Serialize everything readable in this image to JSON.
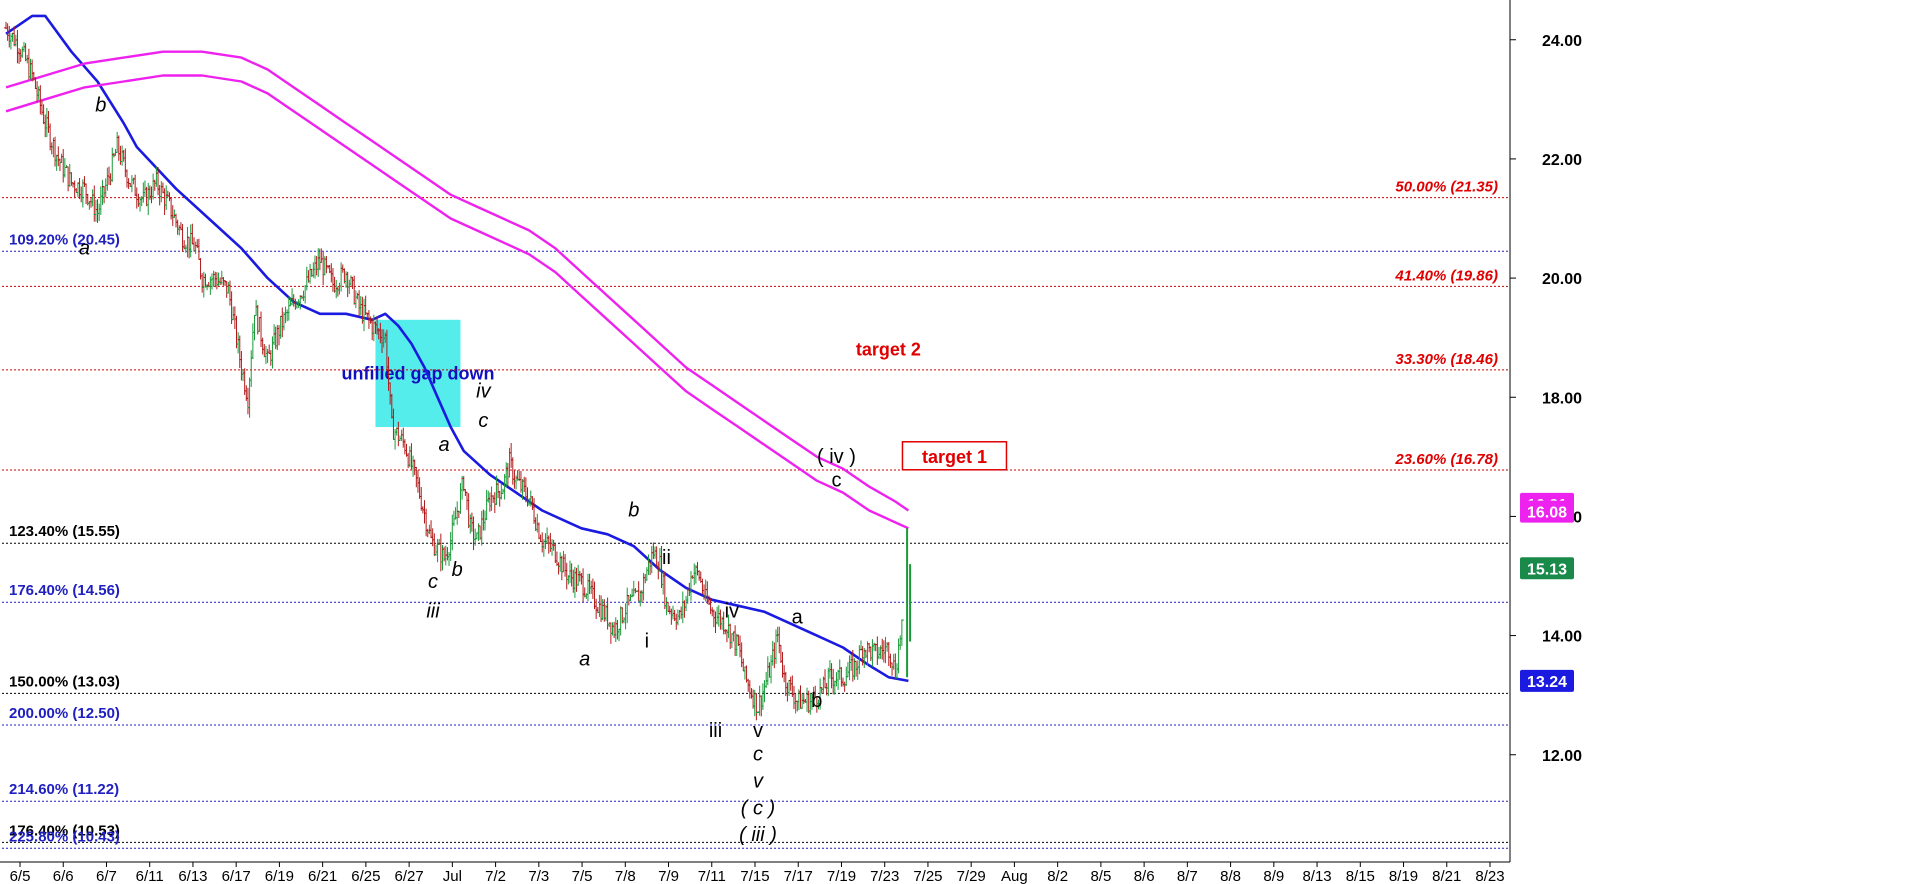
{
  "chart_data": {
    "type": "candlestick",
    "y_axis": {
      "range": [
        10.2,
        24.6
      ],
      "ticks": [
        12,
        14,
        16,
        18,
        20,
        22,
        24
      ],
      "tick_labels": [
        "12.00",
        "14.00",
        "16.00",
        "18.00",
        "20.00",
        "22.00",
        "24.00"
      ]
    },
    "x_axis": {
      "tick_labels": [
        "6/5",
        "6/6",
        "6/7",
        "6/11",
        "6/13",
        "6/17",
        "6/19",
        "6/21",
        "6/25",
        "6/27",
        "Jul",
        "7/2",
        "7/3",
        "7/5",
        "7/8",
        "7/9",
        "7/11",
        "7/15",
        "7/17",
        "7/19",
        "7/23",
        "7/25",
        "7/29",
        "Aug",
        "8/2",
        "8/5",
        "8/6",
        "8/7",
        "8/8",
        "8/9",
        "8/13",
        "8/15",
        "8/19",
        "8/21",
        "8/23"
      ]
    },
    "price_path": [
      [
        0,
        24.2
      ],
      [
        2,
        23.9
      ],
      [
        4,
        23.4
      ],
      [
        6,
        22.6
      ],
      [
        8,
        22.0
      ],
      [
        10,
        21.6
      ],
      [
        12,
        21.5
      ],
      [
        14,
        21.1
      ],
      [
        16,
        21.8
      ],
      [
        17,
        22.2
      ],
      [
        19,
        21.6
      ],
      [
        21,
        21.3
      ],
      [
        23,
        21.6
      ],
      [
        25,
        21.2
      ],
      [
        27,
        20.7
      ],
      [
        29,
        20.5
      ],
      [
        30,
        20.0
      ],
      [
        32,
        20.0
      ],
      [
        34,
        19.8
      ],
      [
        36,
        18.5
      ],
      [
        37,
        18.0
      ],
      [
        38,
        19.5
      ],
      [
        40,
        18.6
      ],
      [
        42,
        19.2
      ],
      [
        44,
        19.6
      ],
      [
        46,
        19.9
      ],
      [
        48,
        20.3
      ],
      [
        50,
        19.9
      ],
      [
        52,
        20.1
      ],
      [
        54,
        19.5
      ],
      [
        56,
        19.2
      ],
      [
        58,
        19.0
      ],
      [
        59,
        17.5
      ],
      [
        61,
        17.2
      ],
      [
        63,
        16.5
      ],
      [
        65,
        15.6
      ],
      [
        67,
        15.3
      ],
      [
        68,
        15.6
      ],
      [
        70,
        16.6
      ],
      [
        71,
        15.8
      ],
      [
        72,
        15.6
      ],
      [
        74,
        16.3
      ],
      [
        76,
        16.5
      ],
      [
        77,
        16.9
      ],
      [
        78,
        16.6
      ],
      [
        80,
        16.3
      ],
      [
        82,
        15.6
      ],
      [
        84,
        15.4
      ],
      [
        86,
        15.0
      ],
      [
        88,
        14.9
      ],
      [
        90,
        14.6
      ],
      [
        92,
        14.3
      ],
      [
        93,
        14.1
      ],
      [
        95,
        14.5
      ],
      [
        97,
        14.7
      ],
      [
        98,
        15.1
      ],
      [
        99,
        15.4
      ],
      [
        100,
        15.2
      ],
      [
        101,
        14.5
      ],
      [
        103,
        14.3
      ],
      [
        104,
        14.6
      ],
      [
        105,
        15.1
      ],
      [
        106,
        15.0
      ],
      [
        107,
        14.6
      ],
      [
        108,
        14.4
      ],
      [
        110,
        14.2
      ],
      [
        112,
        13.8
      ],
      [
        113,
        13.3
      ],
      [
        115,
        12.8
      ],
      [
        117,
        13.5
      ],
      [
        118,
        14.0
      ],
      [
        119,
        13.3
      ],
      [
        121,
        12.9
      ],
      [
        123,
        12.9
      ],
      [
        125,
        13.1
      ],
      [
        126,
        13.3
      ],
      [
        128,
        13.3
      ],
      [
        130,
        13.5
      ],
      [
        131,
        13.8
      ],
      [
        133,
        13.7
      ],
      [
        135,
        13.8
      ],
      [
        136,
        13.4
      ],
      [
        137,
        14.2
      ],
      [
        138,
        15.1
      ]
    ],
    "series": [
      {
        "name": "",
        "color": "#1a1ae0",
        "points": [
          [
            0,
            24.1
          ],
          [
            4,
            24.4
          ],
          [
            6,
            24.4
          ],
          [
            10,
            23.8
          ],
          [
            14,
            23.3
          ],
          [
            18,
            22.6
          ],
          [
            20,
            22.2
          ],
          [
            26,
            21.5
          ],
          [
            32,
            20.9
          ],
          [
            36,
            20.5
          ],
          [
            40,
            20.0
          ],
          [
            44,
            19.6
          ],
          [
            48,
            19.4
          ],
          [
            52,
            19.4
          ],
          [
            56,
            19.3
          ],
          [
            58,
            19.4
          ],
          [
            60,
            19.2
          ],
          [
            62,
            18.9
          ],
          [
            64,
            18.5
          ],
          [
            66,
            18.0
          ],
          [
            68,
            17.5
          ],
          [
            70,
            17.1
          ],
          [
            74,
            16.7
          ],
          [
            78,
            16.4
          ],
          [
            82,
            16.1
          ],
          [
            86,
            15.9
          ],
          [
            88,
            15.8
          ],
          [
            92,
            15.7
          ],
          [
            96,
            15.5
          ],
          [
            100,
            15.1
          ],
          [
            104,
            14.8
          ],
          [
            108,
            14.6
          ],
          [
            112,
            14.5
          ],
          [
            116,
            14.4
          ],
          [
            120,
            14.2
          ],
          [
            124,
            14.0
          ],
          [
            128,
            13.8
          ],
          [
            132,
            13.5
          ],
          [
            135,
            13.3
          ],
          [
            138,
            13.24
          ]
        ]
      },
      {
        "name": "",
        "color": "#ee22ee",
        "points": [
          [
            0,
            23.2
          ],
          [
            6,
            23.4
          ],
          [
            12,
            23.6
          ],
          [
            18,
            23.7
          ],
          [
            24,
            23.8
          ],
          [
            30,
            23.8
          ],
          [
            36,
            23.7
          ],
          [
            40,
            23.5
          ],
          [
            44,
            23.2
          ],
          [
            48,
            22.9
          ],
          [
            52,
            22.6
          ],
          [
            56,
            22.3
          ],
          [
            60,
            22.0
          ],
          [
            64,
            21.7
          ],
          [
            68,
            21.4
          ],
          [
            72,
            21.2
          ],
          [
            76,
            21.0
          ],
          [
            80,
            20.8
          ],
          [
            84,
            20.5
          ],
          [
            88,
            20.1
          ],
          [
            92,
            19.7
          ],
          [
            96,
            19.3
          ],
          [
            100,
            18.9
          ],
          [
            104,
            18.5
          ],
          [
            108,
            18.2
          ],
          [
            112,
            17.9
          ],
          [
            116,
            17.6
          ],
          [
            120,
            17.3
          ],
          [
            124,
            17.0
          ],
          [
            128,
            16.8
          ],
          [
            132,
            16.5
          ],
          [
            136,
            16.25
          ],
          [
            138,
            16.1
          ]
        ]
      },
      {
        "name": "",
        "color": "#ee22ee",
        "points": [
          [
            0,
            22.8
          ],
          [
            6,
            23.0
          ],
          [
            12,
            23.2
          ],
          [
            18,
            23.3
          ],
          [
            24,
            23.4
          ],
          [
            30,
            23.4
          ],
          [
            36,
            23.3
          ],
          [
            40,
            23.1
          ],
          [
            44,
            22.8
          ],
          [
            48,
            22.5
          ],
          [
            52,
            22.2
          ],
          [
            56,
            21.9
          ],
          [
            60,
            21.6
          ],
          [
            64,
            21.3
          ],
          [
            68,
            21.0
          ],
          [
            72,
            20.8
          ],
          [
            76,
            20.6
          ],
          [
            80,
            20.4
          ],
          [
            84,
            20.1
          ],
          [
            88,
            19.7
          ],
          [
            92,
            19.3
          ],
          [
            96,
            18.9
          ],
          [
            100,
            18.5
          ],
          [
            104,
            18.1
          ],
          [
            108,
            17.8
          ],
          [
            112,
            17.5
          ],
          [
            116,
            17.2
          ],
          [
            120,
            16.9
          ],
          [
            124,
            16.6
          ],
          [
            128,
            16.4
          ],
          [
            132,
            16.1
          ],
          [
            136,
            15.9
          ],
          [
            138,
            15.8
          ]
        ]
      }
    ],
    "horizontal_lines": [
      {
        "value": 21.35,
        "color": "#cc0000",
        "label": "50.00% (21.35)",
        "side": "right"
      },
      {
        "value": 20.45,
        "color": "#2020c0",
        "label": "109.20% (20.45)",
        "side": "left"
      },
      {
        "value": 19.86,
        "color": "#cc0000",
        "label": "41.40% (19.86)",
        "side": "right"
      },
      {
        "value": 18.46,
        "color": "#cc0000",
        "label": "33.30% (18.46)",
        "side": "right"
      },
      {
        "value": 16.78,
        "color": "#cc0000",
        "label": "23.60% (16.78)",
        "side": "right"
      },
      {
        "value": 15.55,
        "color": "#000000",
        "label": "123.40% (15.55)",
        "side": "left"
      },
      {
        "value": 14.56,
        "color": "#2020c0",
        "label": "176.40% (14.56)",
        "side": "left"
      },
      {
        "value": 13.03,
        "color": "#000000",
        "label": "150.00% (13.03)",
        "side": "left"
      },
      {
        "value": 12.5,
        "color": "#2020c0",
        "label": "200.00% (12.50)",
        "side": "left"
      },
      {
        "value": 11.22,
        "color": "#2020c0",
        "label": "214.60% (11.22)",
        "side": "left"
      },
      {
        "value": 10.53,
        "color": "#000000",
        "label": "176.40% (10.53)",
        "side": "left"
      },
      {
        "value": 10.43,
        "color": "#2020c0",
        "label": "225.80% (10.43)",
        "side": "left"
      }
    ],
    "price_badges": [
      {
        "value": 16.21,
        "label": "16.21",
        "color": "#ee22ee"
      },
      {
        "value": 16.08,
        "label": "16.08",
        "color": "#ee22ee"
      },
      {
        "value": 15.13,
        "label": "15.13",
        "color": "#1a8a4a"
      },
      {
        "value": 13.24,
        "label": "13.24",
        "color": "#1a1ae0"
      }
    ],
    "annotations": {
      "gap_box": {
        "label": "unfilled gap down",
        "x_start": 56.5,
        "x_end": 69.5,
        "y_top": 19.3,
        "y_bottom": 17.5,
        "fill": "#55ecec"
      },
      "targets": [
        {
          "label": "target 2",
          "x": 112,
          "value": 18.8,
          "boxed": false
        },
        {
          "label": "target 1",
          "x": 127,
          "value": 16.9,
          "boxed": true
        }
      ],
      "wave_labels": [
        {
          "text": "b",
          "x": 14.5,
          "value": 22.8,
          "italic": true
        },
        {
          "text": "a",
          "x": 12,
          "value": 20.4,
          "italic": true
        },
        {
          "text": "iv",
          "x": 73,
          "value": 18.0,
          "italic": true
        },
        {
          "text": "c",
          "x": 73,
          "value": 17.5,
          "italic": true
        },
        {
          "text": "a",
          "x": 67,
          "value": 17.1,
          "italic": true
        },
        {
          "text": "c",
          "x": 65.3,
          "value": 14.8,
          "italic": true
        },
        {
          "text": "iii",
          "x": 65.3,
          "value": 14.3,
          "italic": true
        },
        {
          "text": "b",
          "x": 69,
          "value": 15.0,
          "italic": true
        },
        {
          "text": "b",
          "x": 96,
          "value": 16.0,
          "italic": true
        },
        {
          "text": "a",
          "x": 88.5,
          "value": 13.5,
          "italic": true
        },
        {
          "text": "ii",
          "x": 101,
          "value": 15.2,
          "italic": false
        },
        {
          "text": "i",
          "x": 98,
          "value": 13.8,
          "italic": false
        },
        {
          "text": "iv",
          "x": 111,
          "value": 14.3,
          "italic": false
        },
        {
          "text": "iii",
          "x": 108.5,
          "value": 12.3,
          "italic": false
        },
        {
          "text": "v",
          "x": 115,
          "value": 12.3,
          "italic": false
        },
        {
          "text": "c",
          "x": 115,
          "value": 11.9,
          "italic": true
        },
        {
          "text": "v",
          "x": 115,
          "value": 11.45,
          "italic": true
        },
        {
          "text": "( c )",
          "x": 115,
          "value": 11.0,
          "italic": true
        },
        {
          "text": "( iii )",
          "x": 115,
          "value": 10.55,
          "italic": true
        },
        {
          "text": "a",
          "x": 121,
          "value": 14.2,
          "italic": false
        },
        {
          "text": "b",
          "x": 124,
          "value": 12.8,
          "italic": false
        },
        {
          "text": "( iv )",
          "x": 127,
          "value": 16.9,
          "italic": false
        },
        {
          "text": "c",
          "x": 127,
          "value": 16.5,
          "italic": false
        }
      ]
    },
    "grid": false,
    "legend": "none"
  }
}
